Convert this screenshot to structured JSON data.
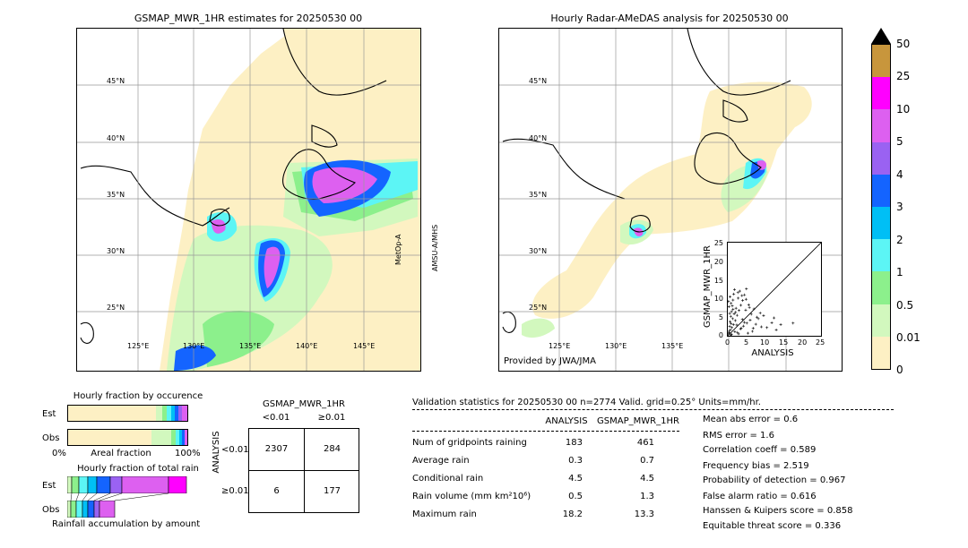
{
  "left_map": {
    "title": "GSMAP_MWR_1HR estimates for 20250530 00",
    "lat_labels": [
      "45°N",
      "40°N",
      "35°N",
      "30°N",
      "25°N"
    ],
    "lon_labels": [
      "125°E",
      "130°E",
      "135°E",
      "140°E",
      "145°E"
    ],
    "side_label_1": "MetOp-A",
    "side_label_2": "AMSU-A/MHS"
  },
  "right_map": {
    "title": "Hourly Radar-AMeDAS analysis for 20250530 00",
    "lat_labels": [
      "45°N",
      "40°N",
      "35°N",
      "30°N",
      "25°N"
    ],
    "lon_labels": [
      "125°E",
      "130°E",
      "135°E"
    ],
    "credit": "Provided by JWA/JMA"
  },
  "colorbar": {
    "labels": [
      "50",
      "25",
      "10",
      "5",
      "4",
      "3",
      "2",
      "1",
      "0.5",
      "0.01",
      "0"
    ],
    "colors": [
      "#c8963c",
      "#ff00ff",
      "#dd60f0",
      "#9a62f2",
      "#1464ff",
      "#00bff5",
      "#5cf5f5",
      "#8cf08c",
      "#d2f8be",
      "#fdf0c4"
    ],
    "over_color": "#000000"
  },
  "scatter": {
    "ylabel": "GSMAP_MWR_1HR",
    "xlabel": "ANALYSIS",
    "ticks": [
      "0",
      "5",
      "10",
      "15",
      "20",
      "25"
    ]
  },
  "occurrence": {
    "title": "Hourly fraction by occurence",
    "row_est": "Est",
    "row_obs": "Obs",
    "axis_left": "0%",
    "axis_mid": "Areal fraction",
    "axis_right": "100%"
  },
  "total_rain": {
    "title": "Hourly fraction of total rain",
    "row_est": "Est",
    "row_obs": "Obs",
    "footer": "Rainfall accumulation by amount"
  },
  "contingency": {
    "title": "GSMAP_MWR_1HR",
    "col1": "<0.01",
    "col2": "≥0.01",
    "row_title": "ANALYSIS",
    "row1": "<0.01",
    "row2": "≥0.01",
    "cells": [
      "2307",
      "284",
      "6",
      "177"
    ]
  },
  "validation": {
    "header": "Validation statistics for 20250530 00  n=2774 Valid. grid=0.25° Units=mm/hr.",
    "col_analysis": "ANALYSIS",
    "col_gsmap": "GSMAP_MWR_1HR",
    "rows": [
      {
        "label": "Num of gridpoints raining",
        "analysis": "183",
        "gsmap": "461"
      },
      {
        "label": "Average rain",
        "analysis": "0.3",
        "gsmap": "0.7"
      },
      {
        "label": "Conditional rain",
        "analysis": "4.5",
        "gsmap": "4.5"
      },
      {
        "label": "Rain volume (mm km²10⁶)",
        "analysis": "0.5",
        "gsmap": "1.3"
      },
      {
        "label": "Maximum rain",
        "analysis": "18.2",
        "gsmap": "13.3"
      }
    ],
    "scores": [
      "Mean abs error =    0.6",
      "RMS error =    1.6",
      "Correlation coeff =  0.589",
      "Frequency bias =  2.519",
      "Probability of detection =  0.967",
      "False alarm ratio =  0.616",
      "Hanssen & Kuipers score =  0.858",
      "Equitable threat score =  0.336"
    ]
  },
  "chart_data": {
    "type": "scatter",
    "xlabel": "ANALYSIS",
    "ylabel": "GSMAP_MWR_1HR",
    "xlim": [
      0,
      25
    ],
    "ylim": [
      0,
      25
    ],
    "points": [
      [
        0.2,
        0.5
      ],
      [
        0.3,
        1.2
      ],
      [
        0.5,
        2.5
      ],
      [
        0.6,
        3.8
      ],
      [
        0.8,
        5.2
      ],
      [
        1.0,
        6.5
      ],
      [
        1.2,
        8.0
      ],
      [
        1.4,
        9.6
      ],
      [
        1.6,
        11.2
      ],
      [
        1.8,
        12.4
      ],
      [
        0.4,
        0.8
      ],
      [
        0.7,
        1.6
      ],
      [
        1.1,
        2.2
      ],
      [
        1.5,
        3.0
      ],
      [
        2.0,
        4.1
      ],
      [
        2.5,
        5.5
      ],
      [
        3.0,
        6.8
      ],
      [
        3.5,
        8.2
      ],
      [
        4.0,
        9.5
      ],
      [
        4.5,
        11.0
      ],
      [
        5.0,
        12.6
      ],
      [
        2.2,
        7.4
      ],
      [
        2.8,
        10.1
      ],
      [
        3.2,
        12.0
      ],
      [
        1.3,
        4.6
      ],
      [
        0.9,
        3.3
      ],
      [
        0.5,
        6.0
      ],
      [
        0.3,
        7.8
      ],
      [
        0.2,
        9.2
      ],
      [
        0.6,
        10.5
      ],
      [
        1.9,
        1.1
      ],
      [
        2.6,
        0.9
      ],
      [
        3.4,
        1.8
      ],
      [
        4.2,
        2.6
      ],
      [
        5.1,
        3.4
      ],
      [
        6.0,
        4.2
      ],
      [
        6.8,
        2.0
      ],
      [
        7.5,
        3.1
      ],
      [
        8.2,
        4.6
      ],
      [
        9.0,
        2.4
      ],
      [
        4.8,
        6.9
      ],
      [
        5.6,
        8.3
      ],
      [
        6.3,
        5.8
      ],
      [
        7.0,
        7.2
      ],
      [
        3.9,
        4.4
      ],
      [
        2.4,
        2.9
      ],
      [
        1.7,
        5.9
      ],
      [
        1.0,
        0.4
      ],
      [
        0.8,
        0.2
      ],
      [
        2.9,
        0.5
      ],
      [
        10.5,
        2.2
      ],
      [
        11.8,
        3.5
      ],
      [
        13.0,
        1.6
      ],
      [
        14.2,
        3.0
      ],
      [
        17.5,
        3.4
      ],
      [
        9.6,
        5.4
      ],
      [
        8.7,
        6.1
      ],
      [
        12.4,
        4.8
      ],
      [
        6.6,
        1.2
      ],
      [
        5.4,
        0.7
      ],
      [
        3.6,
        2.1
      ],
      [
        4.4,
        3.6
      ],
      [
        2.1,
        6.3
      ],
      [
        1.4,
        7.1
      ],
      [
        0.9,
        8.7
      ],
      [
        2.7,
        11.6
      ],
      [
        3.8,
        10.8
      ],
      [
        4.9,
        9.8
      ],
      [
        5.8,
        7.6
      ],
      [
        7.8,
        5.0
      ]
    ]
  }
}
